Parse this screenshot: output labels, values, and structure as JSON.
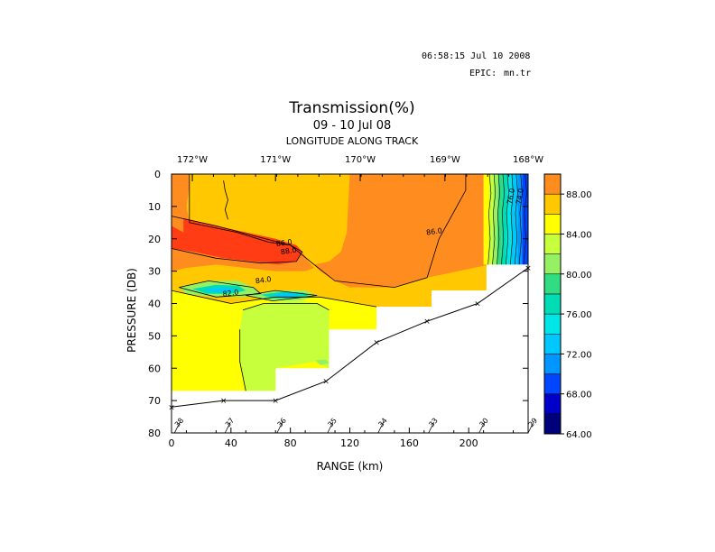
{
  "header": {
    "timestamp": "06:58:15 Jul 10 2008",
    "epic_label": "EPIC:",
    "epic_file": "mn.tr"
  },
  "chart_data": {
    "type": "heatmap",
    "title": "Transmission(%)",
    "subtitle": "09 - 10 Jul 08",
    "top_axis_label": "LONGITUDE ALONG TRACK",
    "xlabel": "RANGE (km)",
    "ylabel": "PRESSURE (DB)",
    "xlim": [
      0,
      240
    ],
    "ylim": [
      80,
      0
    ],
    "x_ticks": [
      "0",
      "40",
      "80",
      "120",
      "160",
      "200"
    ],
    "x_tick_values": [
      0,
      40,
      80,
      120,
      160,
      200
    ],
    "y_ticks": [
      "0",
      "10",
      "20",
      "30",
      "40",
      "50",
      "60",
      "70",
      "80"
    ],
    "y_tick_values": [
      0,
      10,
      20,
      30,
      40,
      50,
      60,
      70,
      80
    ],
    "top_ticks": [
      {
        "label": "172°W",
        "range": 14
      },
      {
        "label": "171°W",
        "range": 70
      },
      {
        "label": "170°W",
        "range": 127
      },
      {
        "label": "169°W",
        "range": 184
      },
      {
        "label": "168°W",
        "range": 240
      }
    ],
    "colorbar": {
      "ticks": [
        "88.00",
        "84.00",
        "80.00",
        "76.00",
        "72.00",
        "68.00",
        "64.00"
      ],
      "levels": [
        64,
        66,
        68,
        70,
        72,
        74,
        76,
        78,
        80,
        82,
        84,
        86,
        88,
        90
      ],
      "colors": [
        "#00007a",
        "#0000c8",
        "#0046ff",
        "#0096ff",
        "#00c8ff",
        "#00e6e6",
        "#00dcb4",
        "#32dc82",
        "#96f064",
        "#c8ff3c",
        "#ffff00",
        "#ffc800",
        "#ff8c1e",
        "#ff3c14"
      ]
    },
    "contour_labels": [
      {
        "text": "86.0",
        "x": 76,
        "y": 22
      },
      {
        "text": "88.0",
        "x": 79,
        "y": 24.5
      },
      {
        "text": "84.0",
        "x": 62,
        "y": 33.5
      },
      {
        "text": "82.0",
        "x": 40,
        "y": 37.5
      },
      {
        "text": "86.0",
        "x": 177,
        "y": 18.5
      },
      {
        "text": "76.0",
        "x": 230,
        "y": 7
      },
      {
        "text": "74.0",
        "x": 236,
        "y": 7
      }
    ],
    "station_track": {
      "x": [
        0,
        35,
        70,
        104,
        138,
        172,
        206,
        240
      ],
      "y": [
        72,
        70,
        70,
        64,
        52,
        45.5,
        40,
        29
      ]
    },
    "station_labels": [
      {
        "text": "38",
        "x": 2
      },
      {
        "text": "37",
        "x": 36
      },
      {
        "text": "36",
        "x": 71
      },
      {
        "text": "35",
        "x": 105
      },
      {
        "text": "34",
        "x": 139
      },
      {
        "text": "33",
        "x": 173
      },
      {
        "text": "30",
        "x": 207
      },
      {
        "text": "29",
        "x": 240
      }
    ]
  }
}
